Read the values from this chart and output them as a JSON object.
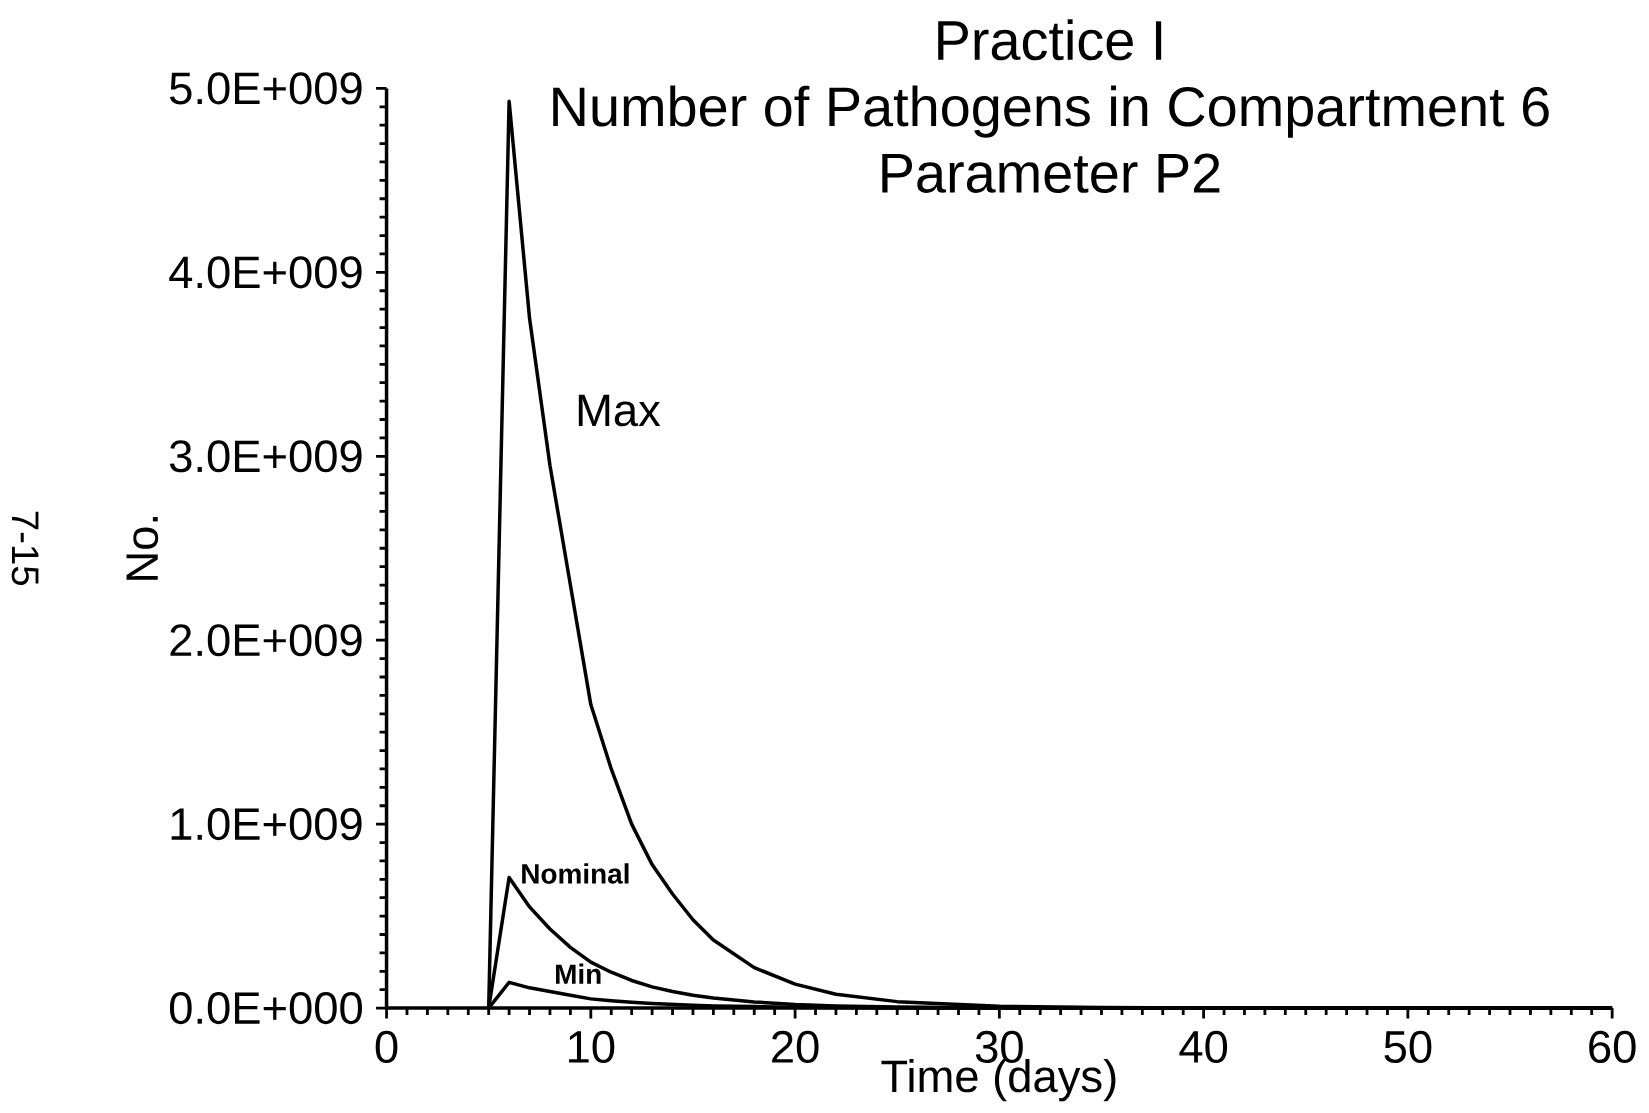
{
  "chart_data": {
    "type": "line",
    "title": "Practice I",
    "subtitle": "Number of Pathogens in Compartment 6",
    "xlabel": "Time (days)",
    "ylabel": "No.",
    "annotations": [
      "Parameter P2",
      "7-15"
    ],
    "x": [
      5,
      6,
      7,
      8,
      9,
      10,
      11,
      12,
      13,
      14,
      15,
      16,
      18,
      20,
      22,
      25,
      30,
      35,
      40,
      50,
      60
    ],
    "series": [
      {
        "name": "Max",
        "color": "#000000",
        "values": [
          0,
          4930000000,
          3750000000,
          2950000000,
          2300000000,
          1650000000,
          1300000000,
          1000000000,
          780000000,
          620000000,
          480000000,
          370000000,
          220000000,
          130000000,
          75000000,
          35000000,
          10000000,
          3000000,
          1000000,
          0,
          0
        ]
      },
      {
        "name": "Nominal",
        "color": "#000000",
        "values": [
          0,
          710000000,
          550000000,
          430000000,
          330000000,
          250000000,
          195000000,
          150000000,
          115000000,
          90000000,
          70000000,
          55000000,
          33000000,
          20000000,
          12000000,
          6000000,
          2000000,
          0,
          0,
          0,
          0
        ]
      },
      {
        "name": "Min",
        "color": "#000000",
        "values": [
          0,
          140000000,
          110000000,
          90000000,
          70000000,
          50000000,
          40000000,
          32000000,
          25000000,
          20000000,
          15000000,
          12000000,
          8000000,
          5000000,
          3000000,
          1000000,
          0,
          0,
          0,
          0,
          0
        ]
      }
    ],
    "xlim": [
      0,
      60
    ],
    "xticks": [
      0,
      10,
      20,
      30,
      40,
      50,
      60
    ],
    "ylim": [
      0,
      5000000000
    ],
    "yticks": [
      {
        "value": 0,
        "label": "0.0E+000"
      },
      {
        "value": 1000000000,
        "label": "1.0E+009"
      },
      {
        "value": 2000000000,
        "label": "2.0E+009"
      },
      {
        "value": 3000000000,
        "label": "3.0E+009"
      },
      {
        "value": 4000000000,
        "label": "4.0E+009"
      },
      {
        "value": 5000000000,
        "label": "5.0E+009"
      }
    ],
    "grid": false,
    "marker": "none",
    "line_style": "solid"
  }
}
